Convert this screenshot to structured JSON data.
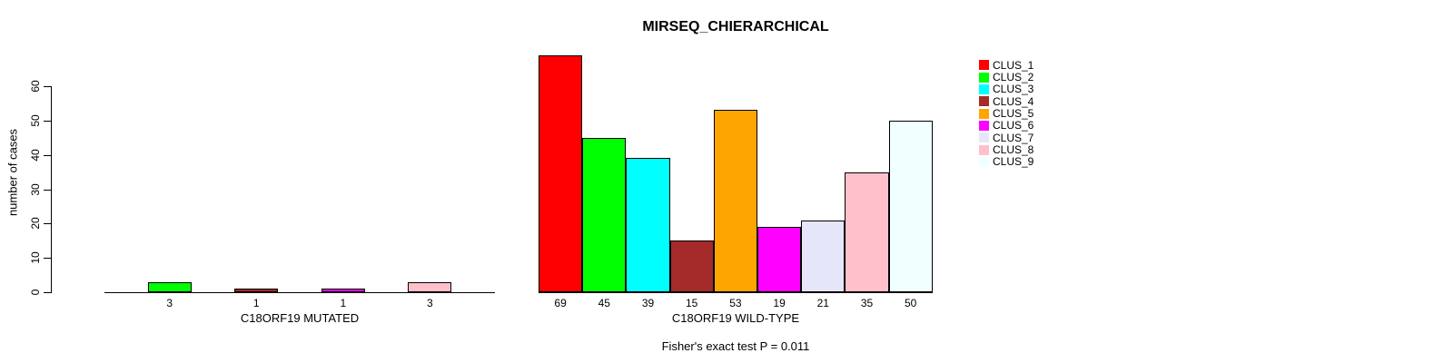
{
  "figure": {
    "background": "#ffffff"
  },
  "chart_data": {
    "type": "bar",
    "title": "MIRSEQ_CHIERARCHICAL",
    "ylabel": "number of cases",
    "ylim": [
      0,
      69
    ],
    "yticks": [
      0,
      10,
      20,
      30,
      40,
      50,
      60
    ],
    "grid": false,
    "legend_position": "right",
    "categories": [
      "CLUS_1",
      "CLUS_2",
      "CLUS_3",
      "CLUS_4",
      "CLUS_5",
      "CLUS_6",
      "CLUS_7",
      "CLUS_8",
      "CLUS_9"
    ],
    "colors": [
      "#FF0000",
      "#00FF00",
      "#00FFFF",
      "#A52A2A",
      "#FFA500",
      "#FF00FF",
      "#E6E6FA",
      "#FFC0CB",
      "#F0FFFF"
    ],
    "panels": [
      {
        "xlabel": "C18ORF19 MUTATED",
        "values": [
          0,
          3,
          0,
          1,
          0,
          1,
          0,
          3,
          0
        ]
      },
      {
        "xlabel": "C18ORF19 WILD-TYPE",
        "values": [
          69,
          45,
          39,
          15,
          53,
          19,
          21,
          35,
          50
        ]
      }
    ],
    "annotation": "Fisher's exact test P = 0.011"
  },
  "legend": {
    "items": [
      {
        "label": "CLUS_1",
        "color": "#FF0000"
      },
      {
        "label": "CLUS_2",
        "color": "#00FF00"
      },
      {
        "label": "CLUS_3",
        "color": "#00FFFF"
      },
      {
        "label": "CLUS_4",
        "color": "#A52A2A"
      },
      {
        "label": "CLUS_5",
        "color": "#FFA500"
      },
      {
        "label": "CLUS_6",
        "color": "#FF00FF"
      },
      {
        "label": "CLUS_7",
        "color": "#E6E6FA"
      },
      {
        "label": "CLUS_8",
        "color": "#FFC0CB"
      },
      {
        "label": "CLUS_9",
        "color": "#F0FFFF"
      }
    ]
  }
}
